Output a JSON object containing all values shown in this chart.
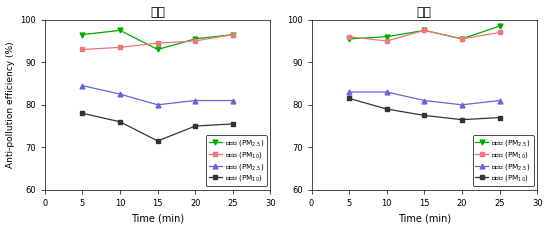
{
  "time": [
    5,
    10,
    15,
    20,
    25
  ],
  "left": {
    "title": "상부",
    "exp_pm25": [
      96.5,
      97.5,
      93.0,
      95.5,
      96.5
    ],
    "exp_pm10": [
      93.0,
      93.5,
      94.5,
      95.0,
      96.5
    ],
    "ctrl_pm25": [
      84.5,
      82.5,
      80.0,
      81.0,
      81.0
    ],
    "ctrl_pm10": [
      78.0,
      76.0,
      71.5,
      75.0,
      75.5
    ]
  },
  "right": {
    "title": "하부",
    "exp_pm25": [
      95.5,
      96.0,
      97.5,
      95.5,
      98.5
    ],
    "exp_pm10": [
      96.0,
      95.0,
      97.5,
      95.5,
      97.0
    ],
    "ctrl_pm25": [
      83.0,
      83.0,
      81.0,
      80.0,
      81.0
    ],
    "ctrl_pm10": [
      81.5,
      79.0,
      77.5,
      76.5,
      77.0
    ]
  },
  "ylabel": "Anti-pollution efficiency (%)",
  "xlabel": "Time (min)",
  "ylim": [
    60,
    100
  ],
  "xlim": [
    0,
    30
  ],
  "xticks": [
    0,
    5,
    10,
    15,
    20,
    25,
    30
  ],
  "yticks": [
    60,
    70,
    80,
    90,
    100
  ],
  "legend_labels_ko": [
    "실험군 (PM$_{2.5}$)",
    "실험군 (PM$_{10}$)",
    "대조군 (PM$_{2.5}$)",
    "대조군 (PM$_{10}$)"
  ],
  "colors": {
    "exp_pm25": "#00aa00",
    "exp_pm10": "#ee7777",
    "ctrl_pm25": "#6666dd",
    "ctrl_pm10": "#333333"
  },
  "marker_exp_pm25": "v",
  "marker_exp_pm10": "s",
  "marker_ctrl_pm25": "^",
  "marker_ctrl_pm10": "s"
}
